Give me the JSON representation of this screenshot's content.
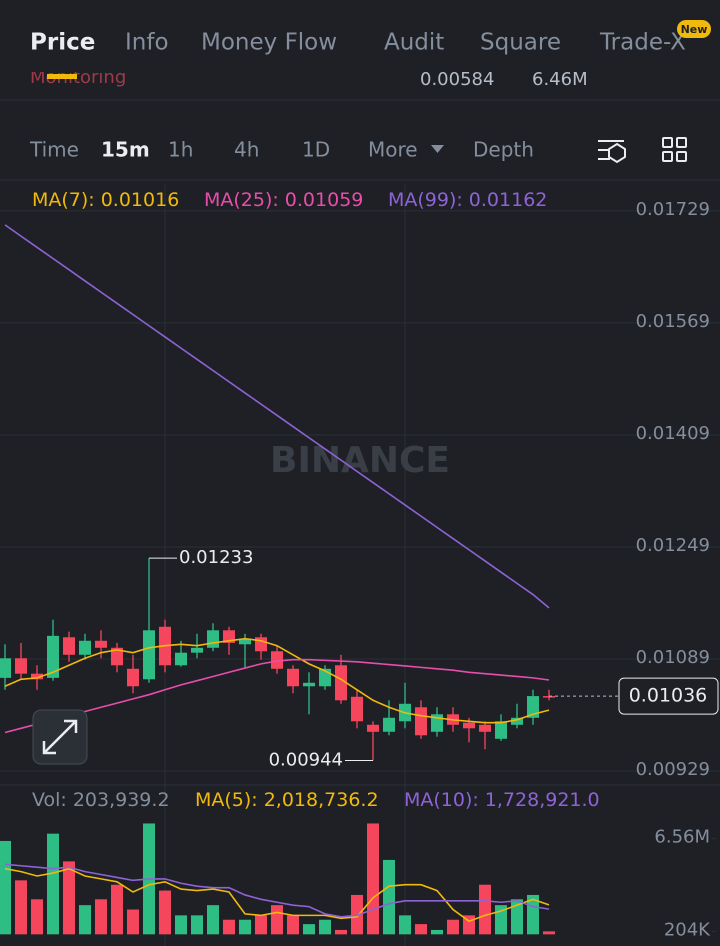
{
  "tabs": [
    "Price",
    "Info",
    "Money Flow",
    "Audit",
    "Square",
    "Trade-X"
  ],
  "new_badge": "New",
  "ticker_partial": [
    "Monitoring",
    "0.00584",
    "6.46M"
  ],
  "intervals": [
    "Time",
    "15m",
    "1h",
    "4h",
    "1D",
    "More",
    "Depth"
  ],
  "watermark": "BINANCE",
  "chart_data": [
    {
      "type": "candlestick",
      "up_color": "#2ebd85",
      "down_color": "#f6465d",
      "open": [
        0.01062,
        0.0109,
        0.01068,
        0.01062,
        0.0112,
        0.01095,
        0.01115,
        0.01105,
        0.01075,
        0.0106,
        0.01135,
        0.0108,
        0.01098,
        0.01105,
        0.0113,
        0.0111,
        0.0112,
        0.011,
        0.01075,
        0.0105,
        0.0105,
        0.0108,
        0.01035,
        0.00995,
        0.00985,
        0.01,
        0.0102,
        0.00985,
        0.0101,
        0.00998,
        0.00995,
        0.00975,
        0.00995,
        0.01005,
        0.01036
      ],
      "high": [
        0.0111,
        0.01112,
        0.0108,
        0.01145,
        0.01128,
        0.01125,
        0.0113,
        0.01112,
        0.01095,
        0.01233,
        0.01145,
        0.01115,
        0.01125,
        0.0114,
        0.01135,
        0.01125,
        0.01125,
        0.01108,
        0.0108,
        0.0107,
        0.0108,
        0.01095,
        0.01045,
        0.01,
        0.0103,
        0.01055,
        0.0103,
        0.0102,
        0.0102,
        0.01005,
        0.01,
        0.0101,
        0.01025,
        0.01045,
        0.01045
      ],
      "low": [
        0.01045,
        0.0106,
        0.01045,
        0.01058,
        0.01085,
        0.01088,
        0.0109,
        0.0107,
        0.0104,
        0.01055,
        0.0107,
        0.01078,
        0.0109,
        0.011,
        0.01095,
        0.01075,
        0.01088,
        0.01068,
        0.0104,
        0.0101,
        0.01045,
        0.01025,
        0.0099,
        0.00944,
        0.0098,
        0.0099,
        0.00975,
        0.00978,
        0.00985,
        0.0097,
        0.0096,
        0.00972,
        0.0099,
        0.00995,
        0.0103
      ],
      "close": [
        0.0109,
        0.01068,
        0.0106,
        0.01122,
        0.01095,
        0.01115,
        0.01105,
        0.0108,
        0.0105,
        0.0113,
        0.0108,
        0.01098,
        0.01105,
        0.0113,
        0.01112,
        0.01118,
        0.011,
        0.01075,
        0.0105,
        0.01055,
        0.01075,
        0.0103,
        0.01,
        0.00985,
        0.01005,
        0.01025,
        0.0098,
        0.0101,
        0.00995,
        0.0099,
        0.00985,
        0.01,
        0.01005,
        0.01036,
        0.01036
      ],
      "series": [
        {
          "name": "MA(7):",
          "color": "#f0b90b",
          "values": [
            0.0105,
            0.0106,
            0.01062,
            0.0107,
            0.0108,
            0.0109,
            0.01098,
            0.01102,
            0.01098,
            0.01105,
            0.01108,
            0.0111,
            0.01108,
            0.01112,
            0.01115,
            0.01118,
            0.01115,
            0.01108,
            0.01095,
            0.01082,
            0.01072,
            0.0106,
            0.01045,
            0.0103,
            0.0102,
            0.01012,
            0.01008,
            0.01005,
            0.01002,
            0.01,
            0.00998,
            0.00998,
            0.01002,
            0.0101,
            0.01016
          ]
        },
        {
          "name": "MA(25):",
          "color": "#e84dac",
          "values": [
            0.00984,
            0.0099,
            0.00996,
            0.01002,
            0.01008,
            0.01014,
            0.0102,
            0.01026,
            0.01032,
            0.01038,
            0.01045,
            0.01052,
            0.01058,
            0.01064,
            0.0107,
            0.01076,
            0.01082,
            0.01086,
            0.01088,
            0.01088,
            0.01087,
            0.01086,
            0.01085,
            0.01083,
            0.01081,
            0.01079,
            0.01077,
            0.01075,
            0.01073,
            0.0107,
            0.01068,
            0.01066,
            0.01064,
            0.01062,
            0.01059
          ]
        },
        {
          "name": "MA(99):",
          "color": "#8e63d6",
          "values": [
            0.01709,
            0.01693,
            0.01677,
            0.01661,
            0.01645,
            0.01629,
            0.01613,
            0.01597,
            0.01581,
            0.01565,
            0.01549,
            0.01533,
            0.01517,
            0.01501,
            0.01485,
            0.01469,
            0.01453,
            0.01437,
            0.01421,
            0.01405,
            0.01389,
            0.01373,
            0.01357,
            0.01341,
            0.01325,
            0.01309,
            0.01293,
            0.01277,
            0.01261,
            0.01245,
            0.01229,
            0.01213,
            0.01197,
            0.01181,
            0.01162
          ]
        }
      ],
      "ylim": [
        0.00909,
        0.01766
      ],
      "yticks": [
        0.01729,
        0.01569,
        0.01409,
        0.01249,
        0.01089,
        0.00929
      ],
      "grid": true
    },
    {
      "type": "bar",
      "name": "Vol:",
      "current_label": "203,939.2",
      "values": [
        6400000,
        3700000,
        2400000,
        6900000,
        5000000,
        2000000,
        2400000,
        3400000,
        1700000,
        7600000,
        3000000,
        1300000,
        1300000,
        2000000,
        1000000,
        1000000,
        1300000,
        2000000,
        1300000,
        700000,
        1000000,
        300000,
        2700000,
        7600000,
        5100000,
        1300000,
        700000,
        300000,
        1000000,
        1300000,
        3400000,
        2000000,
        2400000,
        2700000,
        203939.2
      ],
      "series": [
        {
          "name": "MA(5):",
          "color": "#f0b90b",
          "last_label": "2,018,736.2",
          "values": [
            4500000,
            4300000,
            4000000,
            4200000,
            4500000,
            4000000,
            3800000,
            3600000,
            2900000,
            3400000,
            3600000,
            3100000,
            3000000,
            3100000,
            2900000,
            1400000,
            1300000,
            1500000,
            1300000,
            1300000,
            1300000,
            1100000,
            1200000,
            2500000,
            3300000,
            3400000,
            3400000,
            3000000,
            1700000,
            900000,
            1300000,
            1600000,
            2000000,
            2400000,
            2018736.2
          ]
        },
        {
          "name": "MA(10):",
          "color": "#8e63d6",
          "last_label": "1,728,921.0",
          "values": [
            4800000,
            4700000,
            4600000,
            4500000,
            4600000,
            4300000,
            4100000,
            3900000,
            3700000,
            3800000,
            3800000,
            3500000,
            3300000,
            3200000,
            3200000,
            2700000,
            2400000,
            2200000,
            2000000,
            1900000,
            1400000,
            1200000,
            1300000,
            1700000,
            2100000,
            2300000,
            2300000,
            2300000,
            2300000,
            2300000,
            2300000,
            2200000,
            2300000,
            1900000,
            1728921.0
          ]
        }
      ],
      "ylim": [
        -800000,
        7700000
      ],
      "yticks": [
        {
          "value": 6560000,
          "label": "6.56M"
        },
        {
          "value": 204000,
          "label": "204K"
        }
      ]
    }
  ]
}
